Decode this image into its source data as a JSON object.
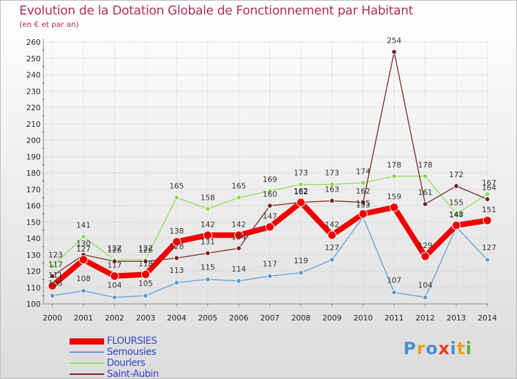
{
  "title": "Evolution de la Dotation Globale de Fonctionnement par Habitant",
  "subtitle": "(en € et par an)",
  "logo": {
    "text": "Proxiti",
    "letter_colors": [
      "#4a8fd0",
      "#e8a020",
      "#4a8fd0",
      "#e04020",
      "#4a8fd0",
      "#e8a020",
      "#60b030"
    ]
  },
  "chart_data": {
    "type": "line",
    "x": [
      2000,
      2001,
      2002,
      2003,
      2004,
      2005,
      2006,
      2007,
      2008,
      2009,
      2010,
      2011,
      2012,
      2013,
      2014
    ],
    "ylim": [
      100,
      260
    ],
    "yticks": [
      100,
      110,
      120,
      130,
      140,
      150,
      160,
      170,
      180,
      190,
      200,
      210,
      220,
      230,
      240,
      250,
      260
    ],
    "grid": true,
    "series": [
      {
        "name": "FLOURSIES",
        "color": "#ee0000",
        "values": [
          111,
          127,
          117,
          118,
          138,
          142,
          142,
          147,
          162,
          142,
          155,
          159,
          129,
          148,
          151
        ],
        "labels": [
          "111",
          "127",
          "117",
          "118",
          "138",
          "142",
          "142",
          "147",
          "162",
          "142",
          "155",
          "159",
          "129",
          "148",
          "151"
        ]
      },
      {
        "name": "Semousies",
        "color": "#5b9bd5",
        "values": [
          105,
          108,
          104,
          105,
          113,
          115,
          114,
          117,
          119,
          127,
          153,
          107,
          104,
          147,
          127
        ],
        "labels": [
          "105",
          "108",
          "104",
          "105",
          "113",
          "115",
          "114",
          "117",
          "119",
          "127",
          "153",
          "107",
          "104",
          "147",
          "127"
        ]
      },
      {
        "name": "Dourlers",
        "color": "#88dd55",
        "values": [
          123,
          141,
          127,
          127,
          165,
          158,
          165,
          169,
          173,
          173,
          174,
          178,
          178,
          155,
          167
        ],
        "labels": [
          "123",
          "141",
          "127",
          "127",
          "165",
          "158",
          "165",
          "169",
          "173",
          "173",
          "174",
          "178",
          "178",
          "155",
          "167"
        ]
      },
      {
        "name": "Saint-Aubin",
        "color": "#772222",
        "values": [
          117,
          130,
          126,
          126,
          128,
          131,
          134,
          160,
          162,
          163,
          162,
          254,
          161,
          172,
          164
        ],
        "labels": [
          "117",
          "130",
          "126",
          "126",
          "128",
          "131",
          "134",
          "160",
          "162",
          "163",
          "162",
          "254",
          "161",
          "172",
          "164"
        ]
      }
    ]
  }
}
